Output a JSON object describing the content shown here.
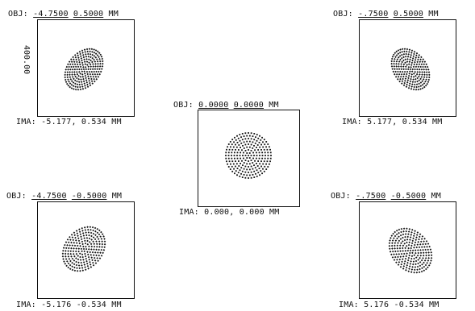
{
  "scale_label": "400.00",
  "panels": [
    {
      "id": "top-left",
      "obj_prefix": "OBJ:",
      "obj_x": "-4.7500",
      "obj_y": "0.5000",
      "obj_unit": "MM",
      "ima_prefix": "IMA:",
      "ima_x": "-5.177,",
      "ima_y": "0.534",
      "ima_unit": "MM"
    },
    {
      "id": "top-right",
      "obj_prefix": "OBJ:",
      "obj_x": "-.7500",
      "obj_y": "0.5000",
      "obj_unit": "MM",
      "ima_prefix": "IMA:",
      "ima_x": "5.177,",
      "ima_y": "0.534",
      "ima_unit": "MM"
    },
    {
      "id": "center",
      "obj_prefix": "OBJ:",
      "obj_x": "0.0000",
      "obj_y": "0.0000",
      "obj_unit": "MM",
      "ima_prefix": "IMA:",
      "ima_x": "0.000,",
      "ima_y": "0.000",
      "ima_unit": "MM"
    },
    {
      "id": "bottom-left",
      "obj_prefix": "OBJ:",
      "obj_x": "-4.7500",
      "obj_y": "-0.5000",
      "obj_unit": "MM",
      "ima_prefix": "IMA:",
      "ima_x": "-5.176",
      "ima_y": "-0.534",
      "ima_unit": "MM"
    },
    {
      "id": "bottom-right",
      "obj_prefix": "OBJ:",
      "obj_x": "-.7500",
      "obj_y": "-0.5000",
      "obj_unit": "MM",
      "ima_prefix": "IMA:",
      "ima_x": "5.176",
      "ima_y": "-0.534",
      "ima_unit": "MM"
    }
  ],
  "colors": {
    "ink": "#111111",
    "background": "#ffffff"
  }
}
